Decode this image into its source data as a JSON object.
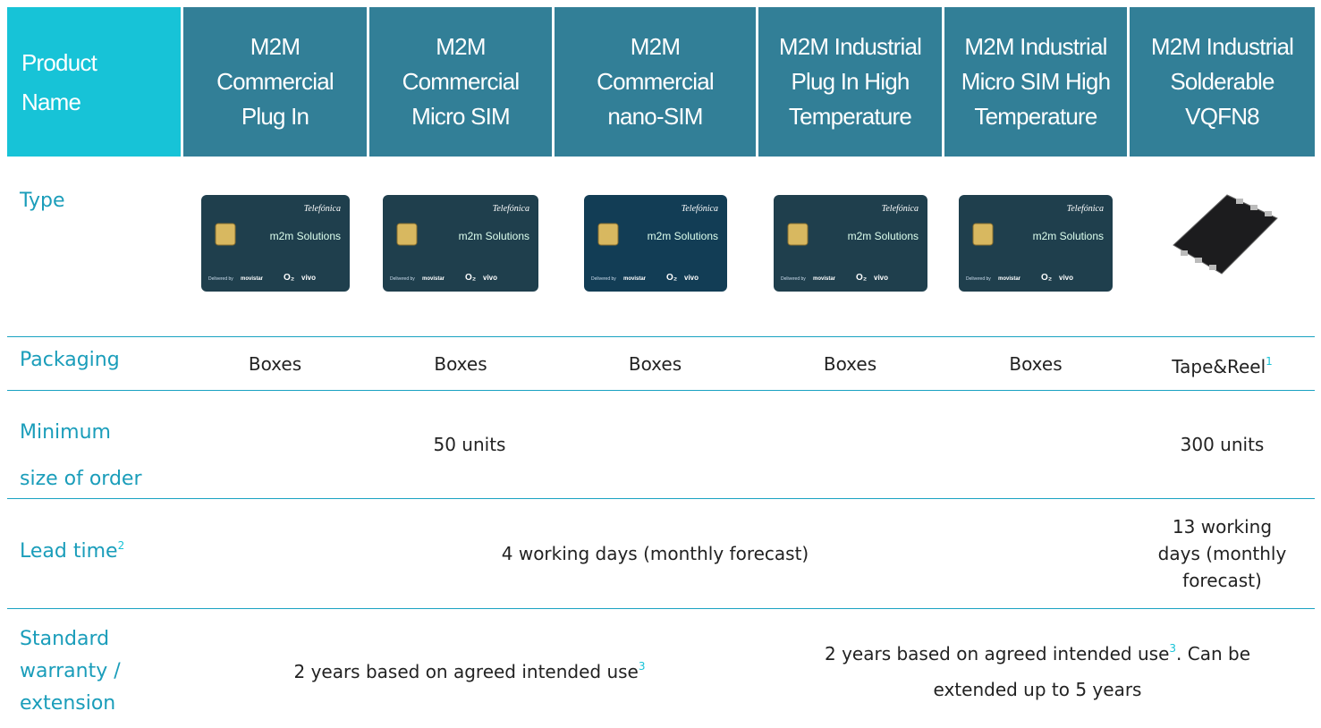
{
  "header": {
    "label": "Product Name",
    "products": [
      [
        "M2M",
        "Commercial",
        "Plug In"
      ],
      [
        "M2M",
        "Commercial",
        "Micro SIM"
      ],
      [
        "M2M",
        "Commercial",
        "nano-SIM"
      ],
      [
        "M2M Industrial",
        "Plug In High",
        "Temperature"
      ],
      [
        "M2M Industrial",
        "Micro SIM High",
        "Temperature"
      ],
      [
        "M2M Industrial",
        "Solderable",
        "VQFN8"
      ]
    ]
  },
  "card": {
    "brand": "Telefónica",
    "product": "m2m Solutions",
    "delivered_by": "Delivered by",
    "partners": [
      "movistar",
      "O₂",
      "vivo"
    ]
  },
  "rows": {
    "type": {
      "label": "Type"
    },
    "packaging": {
      "label": "Packaging",
      "cells": [
        "Boxes",
        "Boxes",
        "Boxes",
        "Boxes",
        "Boxes",
        {
          "text": "Tape&Reel",
          "note": "1"
        }
      ]
    },
    "minimum_order": {
      "label": [
        "Minimum",
        "size of order"
      ],
      "cells": [
        "50 units",
        "300 units"
      ]
    },
    "lead_time": {
      "label": {
        "text": "Lead time",
        "note": "2"
      },
      "cells": [
        "4 working days (monthly forecast)",
        "13 working days (monthly forecast)"
      ]
    },
    "warranty": {
      "label": [
        "Standard",
        "warranty /",
        "extension"
      ],
      "cells": [
        {
          "text": "2 years based on agreed intended use",
          "note": "3"
        },
        {
          "text": "2 years based on agreed intended use",
          "note": "3",
          "after": ". Can be extended up to 5 years"
        }
      ]
    }
  }
}
